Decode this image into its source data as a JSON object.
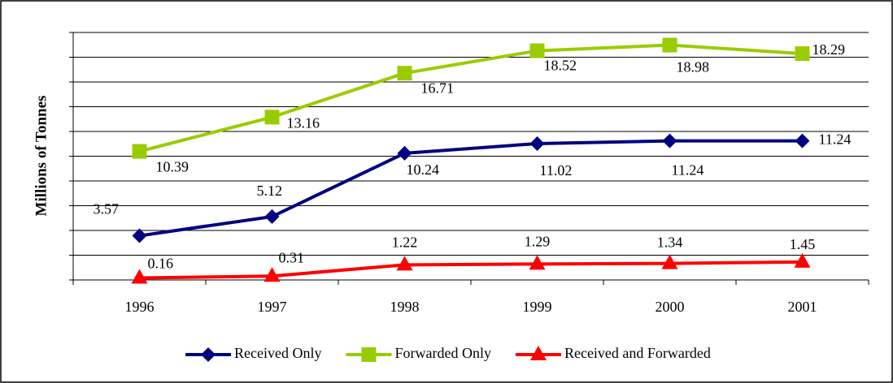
{
  "chart_data": {
    "type": "line",
    "y_label": "Millions of Tonnes",
    "categories": [
      "1996",
      "1997",
      "1998",
      "1999",
      "2000",
      "2001"
    ],
    "series": [
      {
        "name": "Received Only",
        "color": "#000080",
        "marker": "diamond",
        "values": [
          3.57,
          5.12,
          10.24,
          11.02,
          11.24,
          11.24
        ]
      },
      {
        "name": "Forwarded Only",
        "color": "#99CC00",
        "marker": "square",
        "values": [
          10.39,
          13.16,
          16.71,
          18.52,
          18.98,
          18.29
        ]
      },
      {
        "name": "Received and Forwarded",
        "color": "#FF0000",
        "marker": "triangle",
        "values": [
          0.16,
          0.31,
          1.22,
          1.29,
          1.34,
          1.45
        ]
      }
    ],
    "ylim": [
      0,
      20
    ],
    "yticks": [
      0,
      2,
      4,
      6,
      8,
      10,
      12,
      14,
      16,
      18,
      20
    ],
    "grid": true,
    "legend": "bottom"
  }
}
